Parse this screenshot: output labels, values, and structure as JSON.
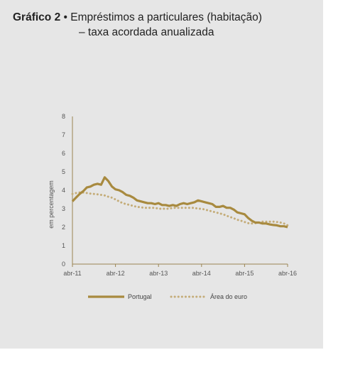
{
  "header": {
    "label": "Gráfico 2",
    "bullet": "•",
    "title_line1": "Empréstimos a particulares (habitação)",
    "title_line2": "– taxa acordada anualizada"
  },
  "colors": {
    "portugal": "#a88a3f",
    "euro": "#c4ac78",
    "axis": "#9a8452"
  },
  "chart_data": {
    "type": "line",
    "ylabel": "em percentagem",
    "ylim": [
      0,
      8
    ],
    "yticks": [
      0,
      1,
      2,
      3,
      4,
      5,
      6,
      7,
      8
    ],
    "xlim": [
      0,
      60
    ],
    "x_tick_labels": [
      "abr-11",
      "abr-12",
      "abr-13",
      "abr-14",
      "abr-15",
      "abr-16"
    ],
    "x_tick_positions": [
      0,
      12,
      24,
      36,
      48,
      60
    ],
    "legend_position": "bottom",
    "series": [
      {
        "name": "Portugal",
        "x": [
          0,
          1,
          2,
          3,
          4,
          5,
          6,
          7,
          8,
          9,
          10,
          11,
          12,
          13,
          14,
          15,
          16,
          17,
          18,
          19,
          20,
          21,
          22,
          23,
          24,
          25,
          26,
          27,
          28,
          29,
          30,
          31,
          32,
          33,
          34,
          35,
          36,
          37,
          38,
          39,
          40,
          41,
          42,
          43,
          44,
          45,
          46,
          47,
          48,
          49,
          50,
          51,
          52,
          53,
          54,
          55,
          56,
          57,
          58,
          59,
          60
        ],
        "values": [
          3.4,
          3.6,
          3.8,
          3.95,
          4.15,
          4.2,
          4.3,
          4.35,
          4.3,
          4.7,
          4.5,
          4.2,
          4.05,
          4.0,
          3.9,
          3.75,
          3.7,
          3.6,
          3.45,
          3.4,
          3.35,
          3.3,
          3.3,
          3.25,
          3.3,
          3.2,
          3.2,
          3.15,
          3.2,
          3.15,
          3.25,
          3.3,
          3.25,
          3.3,
          3.35,
          3.45,
          3.4,
          3.35,
          3.3,
          3.25,
          3.1,
          3.1,
          3.15,
          3.05,
          3.05,
          2.95,
          2.8,
          2.75,
          2.7,
          2.5,
          2.35,
          2.25,
          2.25,
          2.2,
          2.2,
          2.15,
          2.12,
          2.1,
          2.05,
          2.05,
          2.0
        ]
      },
      {
        "name": "Área do euro",
        "x": [
          0,
          1,
          2,
          3,
          4,
          5,
          6,
          7,
          8,
          9,
          10,
          11,
          12,
          13,
          14,
          15,
          16,
          17,
          18,
          19,
          20,
          21,
          22,
          23,
          24,
          25,
          26,
          27,
          28,
          29,
          30,
          31,
          32,
          33,
          34,
          35,
          36,
          37,
          38,
          39,
          40,
          41,
          42,
          43,
          44,
          45,
          46,
          47,
          48,
          49,
          50,
          51,
          52,
          53,
          54,
          55,
          56,
          57,
          58,
          59,
          60
        ],
        "values": [
          3.8,
          3.85,
          3.88,
          3.88,
          3.85,
          3.82,
          3.8,
          3.78,
          3.75,
          3.72,
          3.65,
          3.6,
          3.5,
          3.4,
          3.3,
          3.25,
          3.2,
          3.15,
          3.1,
          3.08,
          3.05,
          3.05,
          3.05,
          3.05,
          3.0,
          3.0,
          3.0,
          3.0,
          3.05,
          3.05,
          3.05,
          3.05,
          3.05,
          3.05,
          3.05,
          3.0,
          3.0,
          2.95,
          2.9,
          2.85,
          2.8,
          2.75,
          2.7,
          2.62,
          2.55,
          2.48,
          2.4,
          2.35,
          2.28,
          2.22,
          2.2,
          2.22,
          2.25,
          2.3,
          2.3,
          2.3,
          2.3,
          2.28,
          2.25,
          2.2,
          2.1
        ]
      }
    ]
  }
}
